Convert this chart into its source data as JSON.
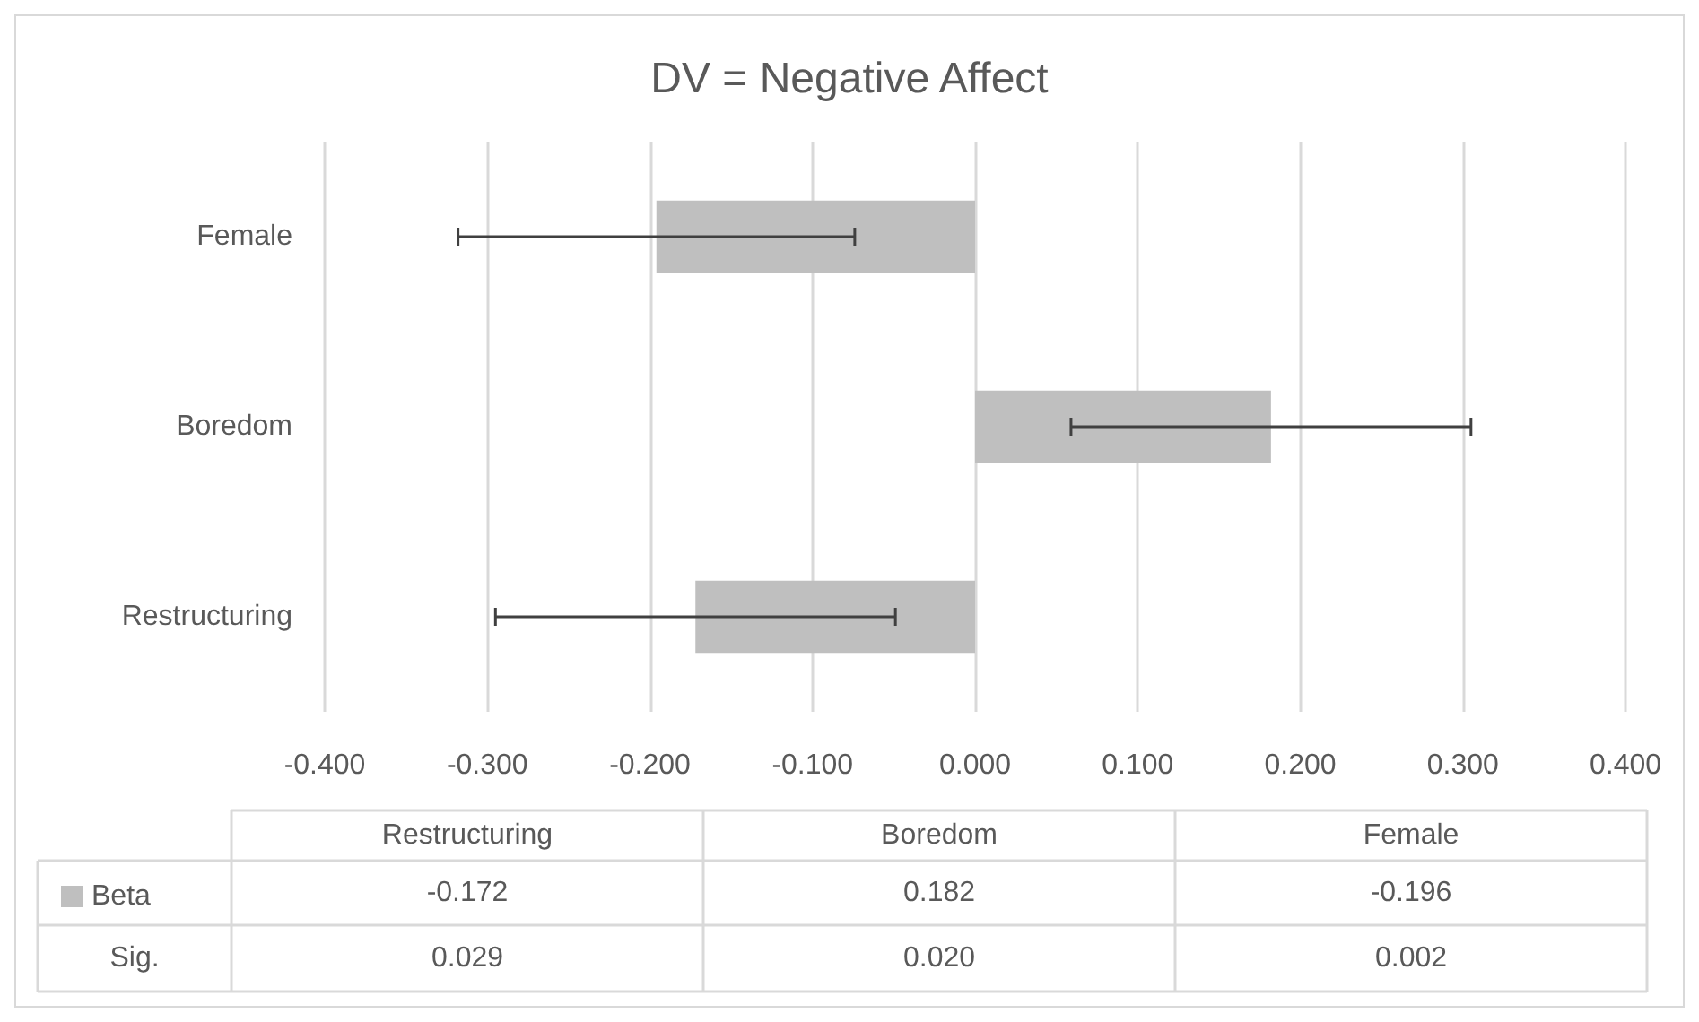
{
  "chart_data": {
    "type": "bar",
    "orientation": "horizontal",
    "title": "DV = Negative Affect",
    "categories": [
      "Female",
      "Boredom",
      "Restructuring"
    ],
    "series": [
      {
        "name": "Beta",
        "color": "#bfbfbf",
        "values": [
          -0.196,
          0.182,
          -0.172
        ],
        "errors": [
          0.122,
          0.123,
          0.123
        ]
      }
    ],
    "xlim": [
      -0.4,
      0.4
    ],
    "xticks": [
      {
        "value": -0.4,
        "label": "-0.400"
      },
      {
        "value": -0.3,
        "label": "-0.300"
      },
      {
        "value": -0.2,
        "label": "-0.200"
      },
      {
        "value": -0.1,
        "label": "-0.100"
      },
      {
        "value": 0,
        "label": "0.000"
      },
      {
        "value": 0.1,
        "label": "0.100"
      },
      {
        "value": 0.2,
        "label": "0.200"
      },
      {
        "value": 0.3,
        "label": "0.300"
      },
      {
        "value": 0.4,
        "label": "0.400"
      }
    ],
    "grid": "x",
    "legend": "bottom left",
    "annotations": [
      "-0.172",
      "0.182",
      "-0.196",
      "Sig.",
      "0.029",
      "0.020",
      "0.002"
    ]
  }
}
